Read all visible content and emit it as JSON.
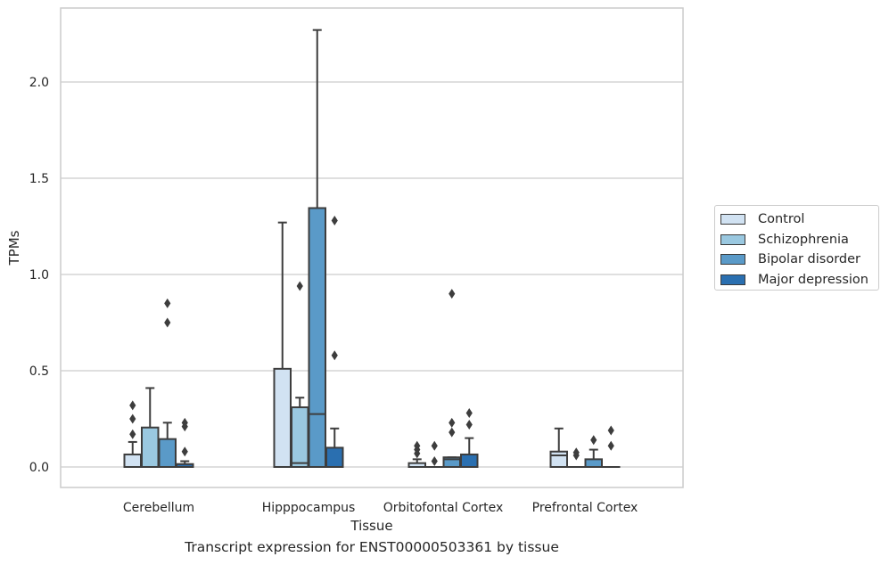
{
  "chart_data": {
    "type": "box",
    "title": "",
    "xlabel": "Tissue",
    "ylabel": "TPMs",
    "caption": "Transcript expression for ENST00000503361 by tissue",
    "ylim": [
      -0.11,
      2.4
    ],
    "yticks": [
      0.0,
      0.5,
      1.0,
      1.5,
      2.0
    ],
    "ytick_labels": [
      "0.0",
      "0.5",
      "1.0",
      "1.5",
      "2.0"
    ],
    "grid": "horizontal",
    "legend_position": "right",
    "categories": [
      "Cerebellum",
      "Hipppocampus",
      "Orbitofontal Cortex",
      "Prefrontal Cortex"
    ],
    "series": [
      {
        "name": "Control",
        "color": "#d1e2f2",
        "boxes": [
          {
            "whislo": 0.0,
            "q1": 0.0,
            "med": 0.0,
            "q3": 0.065,
            "whishi": 0.13,
            "fliers": [
              0.17,
              0.25,
              0.32
            ]
          },
          {
            "whislo": 0.0,
            "q1": 0.0,
            "med": 0.0,
            "q3": 0.51,
            "whishi": 1.27,
            "fliers": []
          },
          {
            "whislo": 0.0,
            "q1": 0.0,
            "med": 0.0,
            "q3": 0.02,
            "whishi": 0.04,
            "fliers": [
              0.07,
              0.09,
              0.11
            ]
          },
          {
            "whislo": 0.0,
            "q1": 0.0,
            "med": 0.06,
            "q3": 0.08,
            "whishi": 0.2,
            "fliers": []
          }
        ]
      },
      {
        "name": "Schizophrenia",
        "color": "#9ac8e0",
        "boxes": [
          {
            "whislo": 0.0,
            "q1": 0.0,
            "med": 0.0,
            "q3": 0.205,
            "whishi": 0.41,
            "fliers": []
          },
          {
            "whislo": 0.0,
            "q1": 0.0,
            "med": 0.02,
            "q3": 0.31,
            "whishi": 0.36,
            "fliers": [
              0.94
            ]
          },
          {
            "whislo": 0.0,
            "q1": 0.0,
            "med": 0.0,
            "q3": 0.0,
            "whishi": 0.0,
            "fliers": [
              0.03,
              0.11
            ]
          },
          {
            "whislo": 0.0,
            "q1": 0.0,
            "med": 0.0,
            "q3": 0.0,
            "whishi": 0.0,
            "fliers": [
              0.06,
              0.075
            ]
          }
        ]
      },
      {
        "name": "Bipolar disorder",
        "color": "#5a9ac8",
        "boxes": [
          {
            "whislo": 0.0,
            "q1": 0.0,
            "med": 0.0,
            "q3": 0.145,
            "whishi": 0.23,
            "fliers": [
              0.75,
              0.85
            ]
          },
          {
            "whislo": 0.0,
            "q1": 0.0,
            "med": 0.275,
            "q3": 1.345,
            "whishi": 2.27,
            "fliers": []
          },
          {
            "whislo": 0.0,
            "q1": 0.0,
            "med": 0.04,
            "q3": 0.05,
            "whishi": 0.05,
            "fliers": [
              0.18,
              0.23,
              0.9
            ]
          },
          {
            "whislo": 0.0,
            "q1": 0.0,
            "med": 0.0,
            "q3": 0.04,
            "whishi": 0.09,
            "fliers": [
              0.14
            ]
          }
        ]
      },
      {
        "name": "Major depression",
        "color": "#2a6fb0",
        "boxes": [
          {
            "whislo": 0.0,
            "q1": 0.0,
            "med": 0.0,
            "q3": 0.015,
            "whishi": 0.03,
            "fliers": [
              0.08,
              0.21,
              0.23
            ]
          },
          {
            "whislo": 0.0,
            "q1": 0.0,
            "med": 0.0,
            "q3": 0.1,
            "whishi": 0.2,
            "fliers": [
              0.58,
              1.28
            ]
          },
          {
            "whislo": 0.0,
            "q1": 0.0,
            "med": 0.0,
            "q3": 0.065,
            "whishi": 0.15,
            "fliers": [
              0.22,
              0.28
            ]
          },
          {
            "whislo": 0.0,
            "q1": 0.0,
            "med": 0.0,
            "q3": 0.0,
            "whishi": 0.0,
            "fliers": [
              0.11,
              0.19
            ]
          }
        ]
      }
    ]
  }
}
